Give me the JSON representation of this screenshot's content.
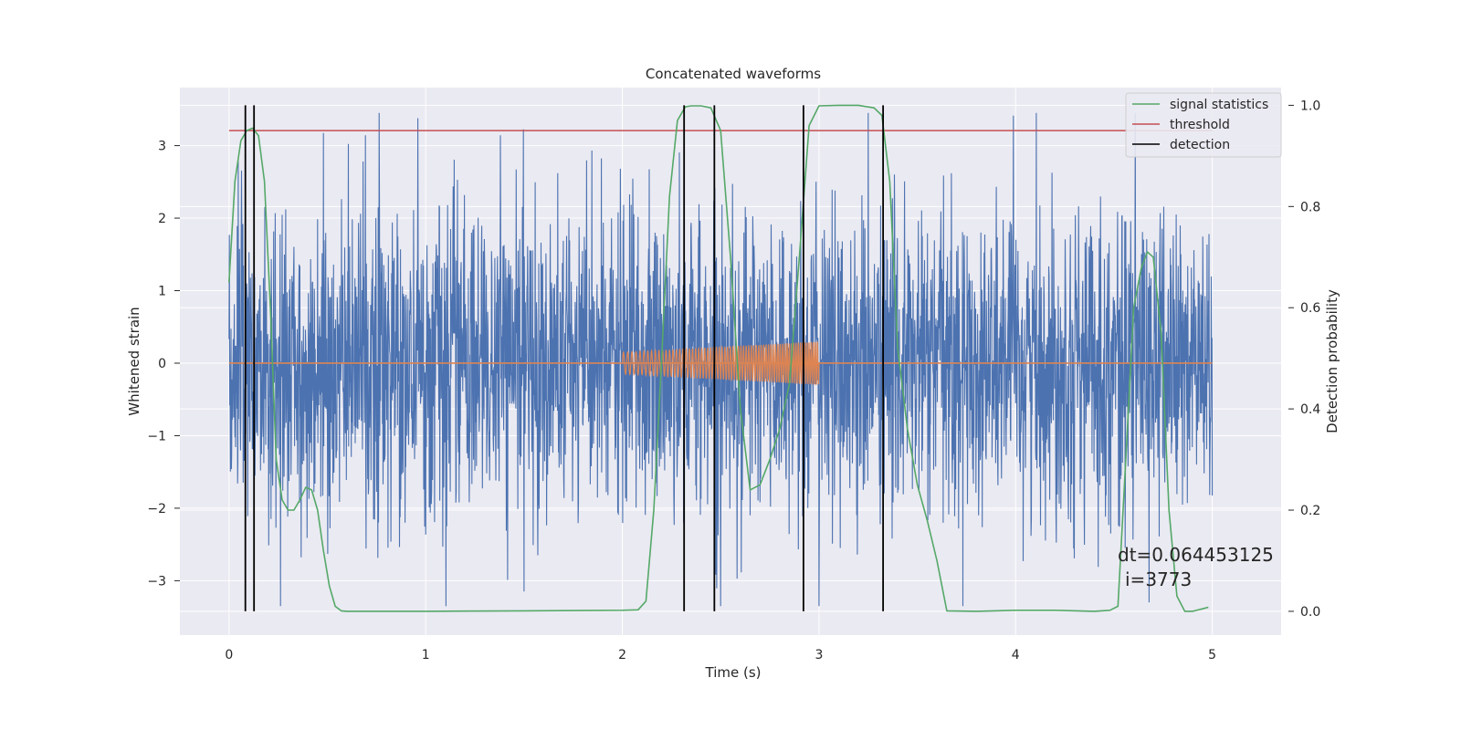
{
  "chart_data": {
    "type": "line",
    "title": "Concatenated waveforms",
    "xlabel": "Time (s)",
    "ylabel": "Whitened strain",
    "y2label": "Detection probability",
    "xlim": [
      -0.25,
      5.35
    ],
    "ylim": [
      -3.75,
      3.8
    ],
    "y2lim": [
      -0.047,
      1.035
    ],
    "xticks": [
      0,
      1,
      2,
      3,
      4,
      5
    ],
    "xtick_labels": [
      "0",
      "1",
      "2",
      "3",
      "4",
      "5"
    ],
    "yticks": [
      -3,
      -2,
      -1,
      0,
      1,
      2,
      3
    ],
    "ytick_labels": [
      "−3",
      "−2",
      "−1",
      "0",
      "1",
      "2",
      "3"
    ],
    "y2ticks": [
      0.0,
      0.2,
      0.4,
      0.6,
      0.8,
      1.0
    ],
    "y2tick_labels": [
      "0.0",
      "0.2",
      "0.4",
      "0.6",
      "0.8",
      "1.0"
    ],
    "grid": true,
    "legend_position": "top-right",
    "colors": {
      "background": "#eaeaf2",
      "grid": "#ffffff",
      "strain": "#4c72b0",
      "injection": "#dd8452",
      "signal_statistics": "#55a868",
      "threshold": "#c44e52",
      "detection": "#000000"
    },
    "strain_noise": {
      "x_range": [
        0,
        5
      ],
      "approx_range": [
        -3.35,
        3.45
      ]
    },
    "injection": {
      "x_range": [
        2.0,
        3.0
      ],
      "amplitude_start": 0.15,
      "amplitude_end": 0.3
    },
    "series": [
      {
        "name": "signal statistics",
        "axis": "right",
        "x": [
          0,
          0.03,
          0.06,
          0.09,
          0.12,
          0.15,
          0.18,
          0.21,
          0.24,
          0.27,
          0.3,
          0.33,
          0.36,
          0.39,
          0.42,
          0.45,
          0.48,
          0.51,
          0.54,
          0.57,
          0.6,
          1.0,
          1.5,
          2.0,
          2.08,
          2.12,
          2.16,
          2.2,
          2.24,
          2.28,
          2.32,
          2.35,
          2.4,
          2.45,
          2.5,
          2.55,
          2.6,
          2.65,
          2.7,
          2.75,
          2.8,
          2.85,
          2.9,
          2.95,
          3.0,
          3.1,
          3.2,
          3.28,
          3.32,
          3.36,
          3.4,
          3.45,
          3.5,
          3.55,
          3.6,
          3.65,
          3.8,
          4.0,
          4.2,
          4.4,
          4.48,
          4.52,
          4.56,
          4.6,
          4.64,
          4.67,
          4.7,
          4.74,
          4.78,
          4.82,
          4.86,
          4.9,
          4.95,
          4.98
        ],
        "y": [
          0.65,
          0.85,
          0.93,
          0.95,
          0.955,
          0.94,
          0.85,
          0.6,
          0.3,
          0.22,
          0.2,
          0.2,
          0.22,
          0.245,
          0.24,
          0.2,
          0.12,
          0.05,
          0.01,
          0.001,
          0.0,
          0.0,
          0.001,
          0.002,
          0.003,
          0.02,
          0.2,
          0.5,
          0.82,
          0.97,
          0.997,
          0.999,
          0.999,
          0.995,
          0.95,
          0.7,
          0.4,
          0.24,
          0.25,
          0.3,
          0.36,
          0.45,
          0.7,
          0.96,
          0.999,
          1.0,
          1.0,
          0.995,
          0.98,
          0.85,
          0.52,
          0.36,
          0.25,
          0.18,
          0.1,
          0.001,
          0.0,
          0.002,
          0.002,
          0.0,
          0.002,
          0.01,
          0.3,
          0.6,
          0.68,
          0.71,
          0.7,
          0.55,
          0.2,
          0.03,
          0.0,
          0.0,
          0.005,
          0.008
        ]
      },
      {
        "name": "threshold",
        "axis": "right",
        "x": [
          0,
          5
        ],
        "y": [
          0.95,
          0.95
        ]
      },
      {
        "name": "detection",
        "axis": "vline",
        "x": [
          0.083,
          0.127,
          2.314,
          2.468,
          2.921,
          3.326
        ]
      }
    ],
    "annotation": {
      "text_line1": "dt=0.064453125",
      "text_line2": "i=3773",
      "x": 4.5,
      "y": -2.7
    }
  }
}
